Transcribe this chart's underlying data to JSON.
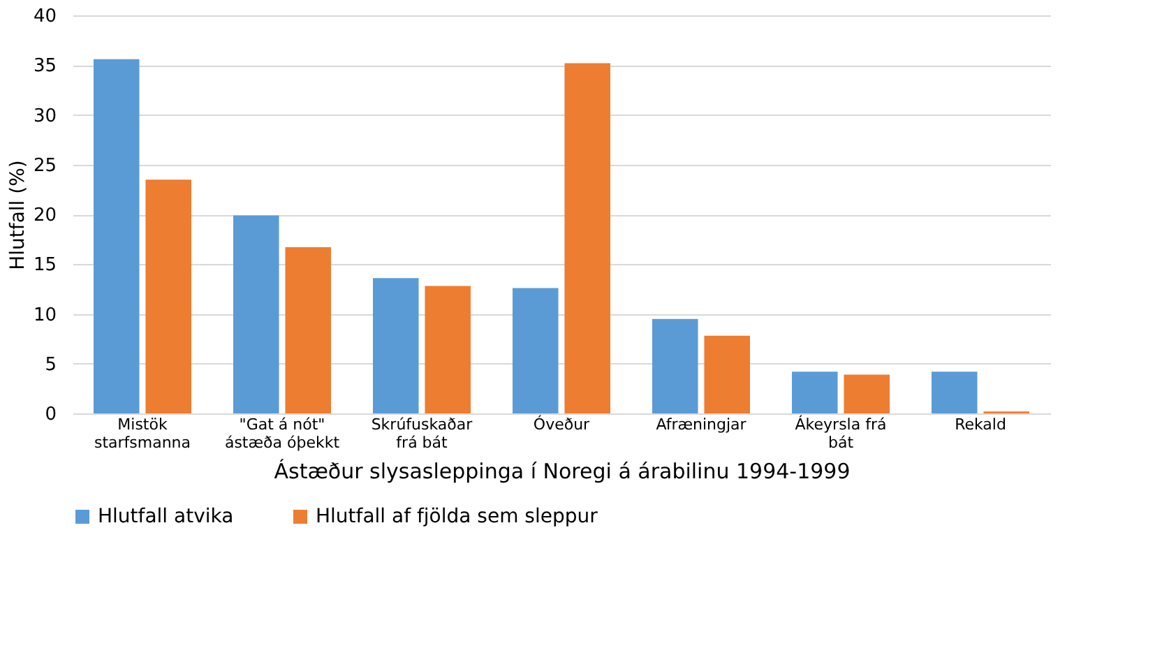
{
  "chart_data": {
    "type": "bar",
    "xlabel": "Ástæður slysasleppinga í Noregi á árabilinu 1994-1999",
    "ylabel": "Hlutfall (%)",
    "categories": [
      "Mistök\nstarfsmanna",
      "\"Gat á nót\"\nástæða óþekkt",
      "Skrúfuskaðar\nfrá bát",
      "Óveður",
      "Afræningjar",
      "Ákeyrsla frá\nbát",
      "Rekald"
    ],
    "series": [
      {
        "name": "Hlutfall atvika",
        "color": "#5b9bd5",
        "values": [
          35.6,
          19.9,
          13.6,
          12.6,
          9.5,
          4.2,
          4.2
        ]
      },
      {
        "name": "Hlutfall af fjölda sem sleppur",
        "color": "#ed7d31",
        "values": [
          23.5,
          16.7,
          12.8,
          35.2,
          7.8,
          3.9,
          0.2
        ]
      }
    ],
    "ylim": [
      0,
      40
    ],
    "yticks": [
      0,
      5,
      10,
      15,
      20,
      25,
      30,
      35,
      40
    ],
    "grid": "y",
    "legend": "bottom"
  }
}
